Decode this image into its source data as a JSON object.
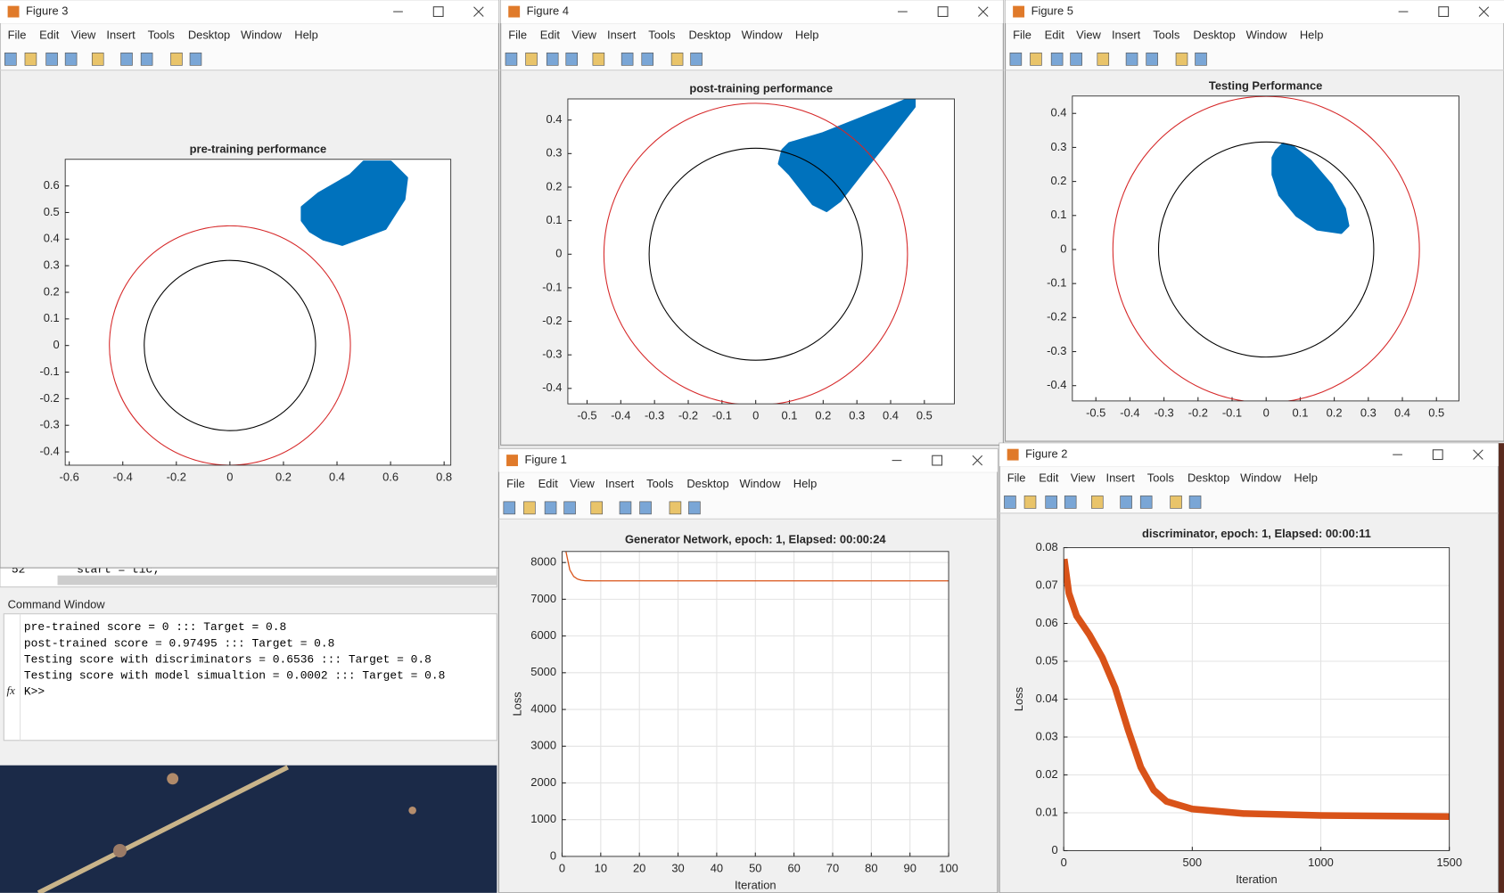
{
  "windows": [
    {
      "title": "Figure 3",
      "menu": [
        "File",
        "Edit",
        "View",
        "Insert",
        "Tools",
        "Desktop",
        "Window",
        "Help"
      ],
      "chart": {
        "type": "scatter",
        "title": "pre-training performance",
        "xlim": [
          -0.615,
          0.825
        ],
        "ylim": [
          -0.45,
          0.7
        ],
        "xticks": [
          -0.6,
          -0.4,
          -0.2,
          0,
          0.2,
          0.4,
          0.6,
          0.8
        ],
        "yticks": [
          -0.4,
          -0.3,
          -0.2,
          -0.1,
          0,
          0.1,
          0.2,
          0.3,
          0.4,
          0.5,
          0.6
        ],
        "circles": [
          {
            "r": 0.32,
            "color": "#000000"
          },
          {
            "r": 0.45,
            "color": "#d62728"
          }
        ],
        "cloud": {
          "color": "#0072bd",
          "x": [
            0.27,
            0.27,
            0.33,
            0.45,
            0.5,
            0.6,
            0.66,
            0.65,
            0.58,
            0.5,
            0.42,
            0.35,
            0.3
          ],
          "y": [
            0.47,
            0.52,
            0.57,
            0.64,
            0.69,
            0.69,
            0.63,
            0.55,
            0.44,
            0.41,
            0.38,
            0.4,
            0.43
          ]
        }
      }
    },
    {
      "title": "Figure 4",
      "menu": [
        "File",
        "Edit",
        "View",
        "Insert",
        "Tools",
        "Desktop",
        "Window",
        "Help"
      ],
      "chart": {
        "type": "scatter",
        "title": "post-training performance",
        "xlim": [
          -0.557,
          0.589
        ],
        "ylim": [
          -0.446,
          0.463
        ],
        "xticks": [
          -0.5,
          -0.4,
          -0.3,
          -0.2,
          -0.1,
          0,
          0.1,
          0.2,
          0.3,
          0.4,
          0.5
        ],
        "yticks": [
          -0.4,
          -0.3,
          -0.2,
          -0.1,
          0,
          0.1,
          0.2,
          0.3,
          0.4
        ],
        "circles": [
          {
            "r": 0.316,
            "color": "#000000"
          },
          {
            "r": 0.45,
            "color": "#d62728"
          }
        ],
        "cloud": {
          "color": "#0072bd",
          "x": [
            0.08,
            0.1,
            0.2,
            0.3,
            0.4,
            0.47,
            0.47,
            0.4,
            0.32,
            0.25,
            0.21,
            0.17,
            0.1,
            0.07
          ],
          "y": [
            0.31,
            0.33,
            0.36,
            0.4,
            0.44,
            0.47,
            0.44,
            0.35,
            0.25,
            0.16,
            0.13,
            0.15,
            0.24,
            0.27
          ]
        }
      }
    },
    {
      "title": "Figure 5",
      "menu": [
        "File",
        "Edit",
        "View",
        "Insert",
        "Tools",
        "Desktop",
        "Window",
        "Help"
      ],
      "chart": {
        "type": "scatter",
        "title": "Testing Performance",
        "xlim": [
          -0.569,
          0.566
        ],
        "ylim": [
          -0.445,
          0.451
        ],
        "xticks": [
          -0.5,
          -0.4,
          -0.3,
          -0.2,
          -0.1,
          0,
          0.1,
          0.2,
          0.3,
          0.4,
          0.5
        ],
        "yticks": [
          -0.4,
          -0.3,
          -0.2,
          -0.1,
          0,
          0.1,
          0.2,
          0.3,
          0.4
        ],
        "circles": [
          {
            "r": 0.316,
            "color": "#000000"
          },
          {
            "r": 0.45,
            "color": "#d62728"
          }
        ],
        "cloud": {
          "color": "#0072bd",
          "x": [
            0.03,
            0.05,
            0.08,
            0.13,
            0.19,
            0.23,
            0.24,
            0.22,
            0.15,
            0.09,
            0.04,
            0.02,
            0.02
          ],
          "y": [
            0.29,
            0.31,
            0.3,
            0.26,
            0.19,
            0.12,
            0.07,
            0.05,
            0.06,
            0.1,
            0.16,
            0.22,
            0.27
          ]
        }
      }
    },
    {
      "title": "Figure 1",
      "menu": [
        "File",
        "Edit",
        "View",
        "Insert",
        "Tools",
        "Desktop",
        "Window",
        "Help"
      ],
      "chart": {
        "type": "line",
        "title": "Generator Network,  epoch: 1, Elapsed: 00:00:24",
        "xlabel": "Iteration",
        "ylabel": "Loss",
        "grid": true,
        "xlim": [
          0,
          100
        ],
        "ylim": [
          0,
          8300
        ],
        "xticks": [
          0,
          10,
          20,
          30,
          40,
          50,
          60,
          70,
          80,
          90,
          100
        ],
        "yticks": [
          0,
          1000,
          2000,
          3000,
          4000,
          5000,
          6000,
          7000,
          8000
        ],
        "series": [
          {
            "color": "#d95319",
            "width": 1.2,
            "x": [
              1,
              2,
              3,
              4,
              5,
              6,
              8,
              100
            ],
            "values": [
              8300,
              7800,
              7620,
              7550,
              7520,
              7505,
              7500,
              7500
            ]
          }
        ]
      }
    },
    {
      "title": "Figure 2",
      "menu": [
        "File",
        "Edit",
        "View",
        "Insert",
        "Tools",
        "Desktop",
        "Window",
        "Help"
      ],
      "chart": {
        "type": "line",
        "title": "discriminator,  epoch: 1, Elapsed: 00:00:11",
        "xlabel": "Iteration",
        "ylabel": "Loss",
        "grid": true,
        "xlim": [
          0,
          1500
        ],
        "ylim": [
          0,
          0.08
        ],
        "xticks": [
          0,
          500,
          1000,
          1500
        ],
        "yticks": [
          0,
          0.01,
          0.02,
          0.03,
          0.04,
          0.05,
          0.06,
          0.07,
          0.08
        ],
        "series": [
          {
            "color": "#d95319",
            "width": 7,
            "x": [
              2,
              20,
              50,
              100,
              150,
              200,
              250,
              300,
              350,
              400,
              500,
              700,
              1000,
              1500
            ],
            "values": [
              0.077,
              0.068,
              0.062,
              0.057,
              0.051,
              0.043,
              0.032,
              0.022,
              0.016,
              0.013,
              0.011,
              0.0098,
              0.0093,
              0.009
            ]
          }
        ]
      }
    }
  ],
  "editor": {
    "line_number": "52",
    "text": "start = tic;"
  },
  "command_window": {
    "title": "Command Window",
    "prompt_icon": "fx",
    "lines": [
      "pre-trained score = 0 ::: Target = 0.8",
      "post-trained score = 0.97495 ::: Target = 0.8",
      "Testing score with discriminators = 0.6536 ::: Target = 0.8",
      "Testing score with model simualtion = 0.0002 ::: Target = 0.8",
      "K>>"
    ]
  }
}
